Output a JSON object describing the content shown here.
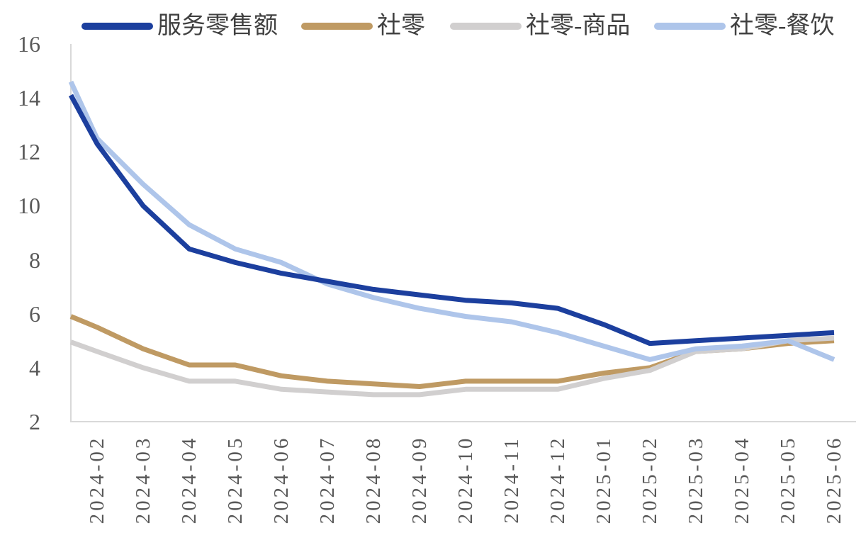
{
  "chart_data": {
    "type": "line",
    "title": "",
    "categories": [
      "2024-02",
      "2024-03",
      "2024-04",
      "2024-05",
      "2024-06",
      "2024-07",
      "2024-08",
      "2024-09",
      "2024-10",
      "2024-11",
      "2024-12",
      "2025-01",
      "2025-02",
      "2025-03",
      "2025-04",
      "2025-05",
      "2025-06"
    ],
    "series": [
      {
        "key": "services-retail",
        "name": "服务零售额",
        "color": "#1C3F9E",
        "stroke_width": 7,
        "axis_edge_value": 14.1,
        "values": [
          12.3,
          10.0,
          8.4,
          7.9,
          7.5,
          7.2,
          6.9,
          6.7,
          6.5,
          6.4,
          6.2,
          5.6,
          4.9,
          5.0,
          5.1,
          5.2,
          5.3
        ]
      },
      {
        "key": "total-retail",
        "name": "社零",
        "color": "#BF9A63",
        "stroke_width": 7,
        "axis_edge_value": 5.9,
        "values": [
          5.5,
          4.7,
          4.1,
          4.1,
          3.7,
          3.5,
          3.4,
          3.3,
          3.5,
          3.5,
          3.5,
          3.8,
          4.0,
          4.6,
          4.7,
          4.9,
          5.0
        ]
      },
      {
        "key": "retail-goods",
        "name": "社零-商品",
        "color": "#D1CFCF",
        "stroke_width": 7,
        "axis_edge_value": 4.95,
        "values": [
          4.6,
          4.0,
          3.5,
          3.5,
          3.2,
          3.1,
          3.0,
          3.0,
          3.2,
          3.2,
          3.2,
          3.6,
          3.9,
          4.6,
          4.7,
          5.0,
          5.1
        ]
      },
      {
        "key": "retail-catering",
        "name": "社零-餐饮",
        "color": "#AEC5EA",
        "stroke_width": 7,
        "axis_edge_value": 14.6,
        "values": [
          12.5,
          10.8,
          9.3,
          8.4,
          7.9,
          7.1,
          6.6,
          6.2,
          5.9,
          5.7,
          5.3,
          4.8,
          4.3,
          4.7,
          4.8,
          5.0,
          4.3
        ]
      }
    ],
    "draw_order": [
      1,
      2,
      3,
      0
    ],
    "y_ticks": [
      16,
      14,
      12,
      10,
      8,
      6,
      4,
      2
    ],
    "ylim": [
      2,
      16
    ],
    "grid": false,
    "legend_position": "top",
    "xlabel": "",
    "ylabel": "",
    "notes": "Lines are clipped at the left y-axis; axis_edge_value is the value where each line meets the axis, left of the first labeled category 2024-02."
  },
  "colors": {
    "background": "#FFFFFF",
    "axis_line": "#D9D9D9",
    "tick_label": "#595959",
    "legend_text": "#404040"
  }
}
